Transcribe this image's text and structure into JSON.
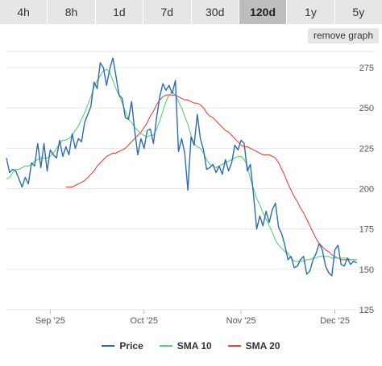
{
  "tabs": [
    {
      "label": "4h"
    },
    {
      "label": "8h"
    },
    {
      "label": "1d"
    },
    {
      "label": "7d"
    },
    {
      "label": "30d"
    },
    {
      "label": "120d",
      "active": true
    },
    {
      "label": "1y"
    },
    {
      "label": "5y"
    }
  ],
  "remove_button": "remove graph",
  "chart_data": {
    "type": "line",
    "ylim": [
      125,
      285
    ],
    "y_ticks": [
      125,
      150,
      175,
      200,
      225,
      250,
      275
    ],
    "x_ticks": [
      {
        "label": "Sep '25",
        "day": 14
      },
      {
        "label": "Oct '25",
        "day": 44
      },
      {
        "label": "Nov '25",
        "day": 75
      },
      {
        "label": "Dec '25",
        "day": 105
      }
    ],
    "x_domain": [
      0,
      118
    ],
    "legend_position": "bottom",
    "series": [
      {
        "name": "Price",
        "color": "#2b6cb0",
        "values": [
          219,
          210,
          212,
          211,
          206,
          201,
          207,
          203,
          216,
          214,
          228,
          213,
          228,
          211,
          224,
          221,
          219,
          230,
          220,
          226,
          221,
          234,
          225,
          231,
          229,
          241,
          246,
          251,
          266,
          262,
          278,
          275,
          264,
          274,
          281,
          270,
          258,
          256,
          244,
          243,
          254,
          236,
          221,
          231,
          225,
          236,
          237,
          228,
          244,
          257,
          265,
          261,
          264,
          259,
          267,
          223,
          231,
          222,
          199,
          232,
          227,
          246,
          231,
          224,
          212,
          213,
          215,
          210,
          214,
          209,
          218,
          211,
          216,
          227,
          224,
          230,
          228,
          211,
          215,
          196,
          175,
          183,
          177,
          186,
          179,
          187,
          191,
          176,
          172,
          165,
          156,
          158,
          151,
          152,
          156,
          158,
          147,
          149,
          156,
          160,
          166,
          162,
          152,
          148,
          146,
          162,
          165,
          153,
          152,
          157,
          153,
          155,
          154
        ]
      },
      {
        "name": "SMA 10",
        "color": "#5fcc7a",
        "values": [
          206,
          207,
          210,
          212,
          212,
          213,
          214,
          214,
          215,
          217,
          218,
          219,
          219,
          219,
          220,
          222,
          225,
          228,
          230,
          230,
          231,
          233,
          236,
          239,
          243,
          247,
          252,
          257,
          263,
          267,
          270,
          273,
          274,
          272,
          267,
          262,
          258,
          253,
          248,
          243,
          241,
          238,
          236,
          234,
          233,
          232,
          233,
          233,
          237,
          242,
          248,
          254,
          258,
          260,
          258,
          254,
          250,
          245,
          240,
          233,
          228,
          226,
          225,
          222,
          218,
          215,
          214,
          213,
          214,
          215,
          216,
          217,
          218,
          219,
          220,
          220,
          218,
          214,
          206,
          200,
          194,
          190,
          185,
          181,
          177,
          173,
          168,
          165,
          163,
          161,
          160,
          157,
          155,
          155,
          155,
          155,
          156,
          156,
          157,
          157,
          158,
          158,
          158,
          158,
          157,
          157,
          157,
          157,
          157,
          157,
          156,
          156,
          156
        ]
      },
      {
        "name": "SMA 20",
        "color": "#e0483c",
        "values": [
          201,
          201,
          201,
          202,
          203,
          204,
          205,
          207,
          209,
          211,
          214,
          216,
          218,
          220,
          221,
          222,
          222,
          223,
          224,
          225,
          227,
          229,
          231,
          233,
          235,
          238,
          241,
          245,
          248,
          252,
          255,
          257,
          258,
          258,
          258,
          258,
          257,
          256,
          255,
          255,
          254,
          253,
          253,
          252,
          250,
          247,
          245,
          244,
          242,
          240,
          238,
          236,
          235,
          233,
          231,
          229,
          227,
          226,
          226,
          225,
          224,
          223,
          222,
          221,
          221,
          221,
          220,
          219,
          216,
          212,
          208,
          203,
          199,
          195,
          192,
          188,
          185,
          181,
          177,
          173,
          169,
          166,
          164,
          162,
          161,
          159,
          158,
          157,
          156,
          156,
          156,
          156,
          156,
          156
        ]
      }
    ]
  }
}
